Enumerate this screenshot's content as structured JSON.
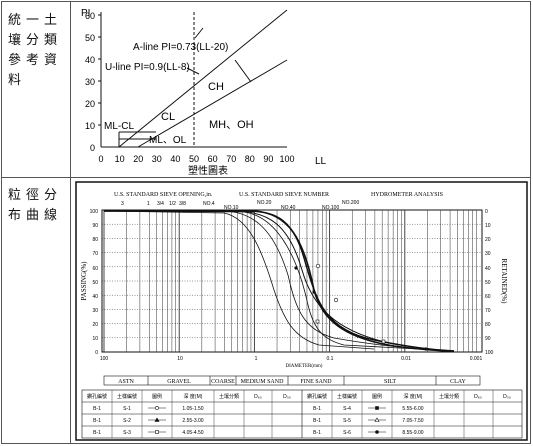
{
  "labels": {
    "row1": [
      "統一土",
      "壤分類",
      "參考資",
      "料"
    ],
    "row2": [
      "粒徑分",
      "布曲線"
    ]
  },
  "plasticity": {
    "y_axis": "PI",
    "x_axis": "LL",
    "y_ticks": [
      "0",
      "10",
      "20",
      "30",
      "40",
      "50",
      "60"
    ],
    "x_ticks": [
      "0",
      "10",
      "20",
      "30",
      "40",
      "50",
      "60",
      "70",
      "80",
      "90",
      "100"
    ],
    "a_line": "A-line PI=0.73(LL-20)",
    "u_line": "U-line PI=0.9(LL-8)",
    "regions": [
      "CH",
      "CL",
      "ML-CL",
      "ML、OL",
      "MH、OH"
    ],
    "caption": "塑性圖表"
  },
  "grain": {
    "header_sieve_opening": "U.S. STANDARD SIEVE OPENING,in.",
    "header_sieve_number": "U.S. STANDARD SIEVE NUMBER",
    "header_hydrometer": "HYDROMETER ANALYSIS",
    "opening_ticks": [
      "3",
      "1",
      "3/4",
      "1/2",
      "3/8"
    ],
    "number_ticks": [
      "NO.4",
      "NO.10",
      "NO.20",
      "NO.40",
      "NO.100",
      "NO.200"
    ],
    "y_left_label": "PASSING(%)",
    "y_right_label": "RETAINED(%)",
    "y_left_ticks": [
      "100",
      "90",
      "80",
      "70",
      "60",
      "50",
      "40",
      "30",
      "20",
      "10",
      "0"
    ],
    "y_right_ticks": [
      "0",
      "10",
      "20",
      "30",
      "40",
      "50",
      "60",
      "70",
      "80",
      "90",
      "100"
    ],
    "x_ticks": [
      "100",
      "10",
      "1",
      "0.1",
      "0.01",
      "0.001"
    ],
    "x_label": "DIAMETER(mm)",
    "bands": [
      "ASTN",
      "GRAVEL",
      "COARSE",
      "MEDIUM SAND",
      "FINE SAND",
      "SILT",
      "CLAY"
    ]
  },
  "legend": {
    "headers": [
      "鑽孔編號",
      "土樣編號",
      "圖例",
      "深 度(M)",
      "土壤分類",
      "D₆₀",
      "D₃₀"
    ],
    "left": [
      {
        "hole": "B-1",
        "sample": "S-1",
        "depth": "1.05-1.50"
      },
      {
        "hole": "B-1",
        "sample": "S-2",
        "depth": "2.55-3.00"
      },
      {
        "hole": "B-1",
        "sample": "S-3",
        "depth": "4.05-4.50"
      }
    ],
    "right": [
      {
        "hole": "B-1",
        "sample": "S-4",
        "depth": "5.55-6.00"
      },
      {
        "hole": "B-1",
        "sample": "S-5",
        "depth": "7.05-7.50"
      },
      {
        "hole": "B-1",
        "sample": "S-6",
        "depth": "8.55-9.00"
      }
    ]
  }
}
